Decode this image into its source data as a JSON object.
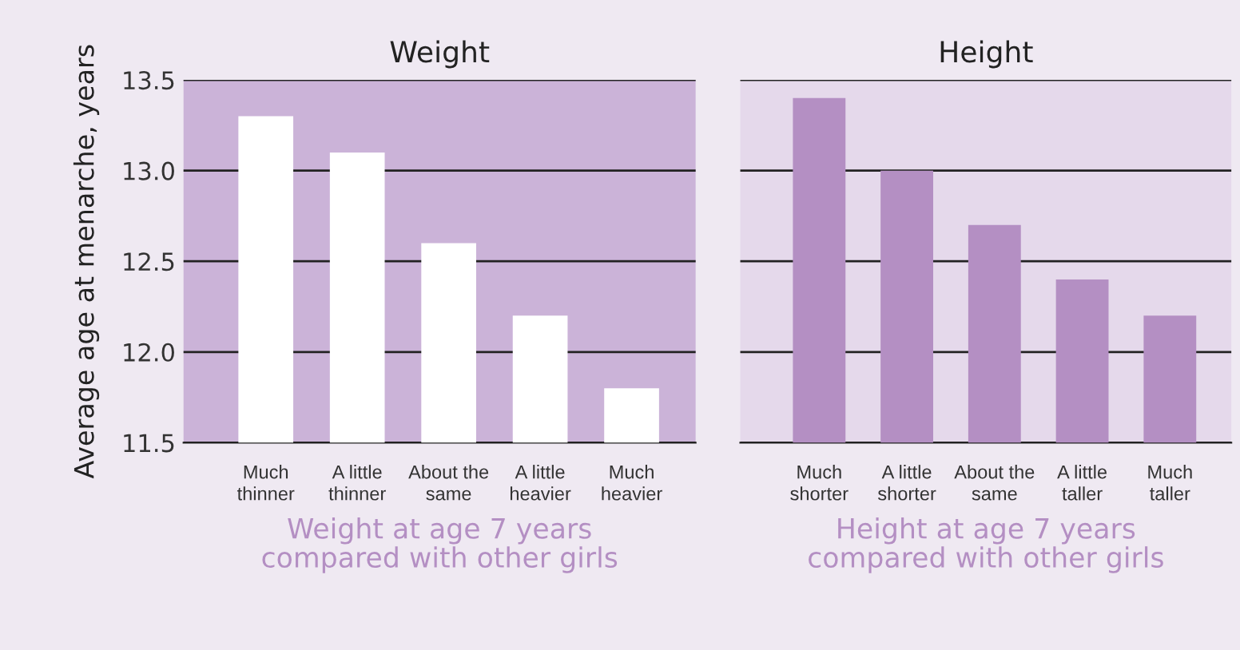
{
  "chart_data": [
    {
      "type": "bar",
      "title": "Weight",
      "ylabel": "Average age at menarche, years",
      "xlabel": "Weight at age 7 years\ncompared with other girls",
      "categories": [
        "Much\nthinner",
        "A little\nthinner",
        "About the\nsame",
        "A little\nheavier",
        "Much\nheavier"
      ],
      "values": [
        13.3,
        13.1,
        12.6,
        12.2,
        11.8
      ],
      "color": "#ffffff",
      "ylim": [
        11.5,
        13.5
      ],
      "yticks": [
        {
          "value": 11.5,
          "label": "11.5"
        },
        {
          "value": 12,
          "label": "12.0"
        },
        {
          "value": 12.5,
          "label": "12.5"
        },
        {
          "value": 13,
          "label": "13.0"
        },
        {
          "value": 13.5,
          "label": "13.5"
        }
      ],
      "grid": "y"
    },
    {
      "type": "bar",
      "title": "Height",
      "xlabel": "Height at age 7 years\ncompared with other girls",
      "categories": [
        "Much\nshorter",
        "A little\nshorter",
        "About the\nsame",
        "A little\ntaller",
        "Much\ntaller"
      ],
      "values": [
        13.4,
        13.0,
        12.7,
        12.4,
        12.2
      ],
      "color": "#b48fc3",
      "ylim": [
        11.5,
        13.5
      ],
      "yticks": [
        {
          "value": 11.5,
          "label": null
        },
        {
          "value": 12,
          "label": null
        },
        {
          "value": 12.5,
          "label": null
        },
        {
          "value": 13,
          "label": null
        },
        {
          "value": 13.5,
          "label": null
        }
      ],
      "grid": "y",
      "tick_labels": "x"
    }
  ]
}
